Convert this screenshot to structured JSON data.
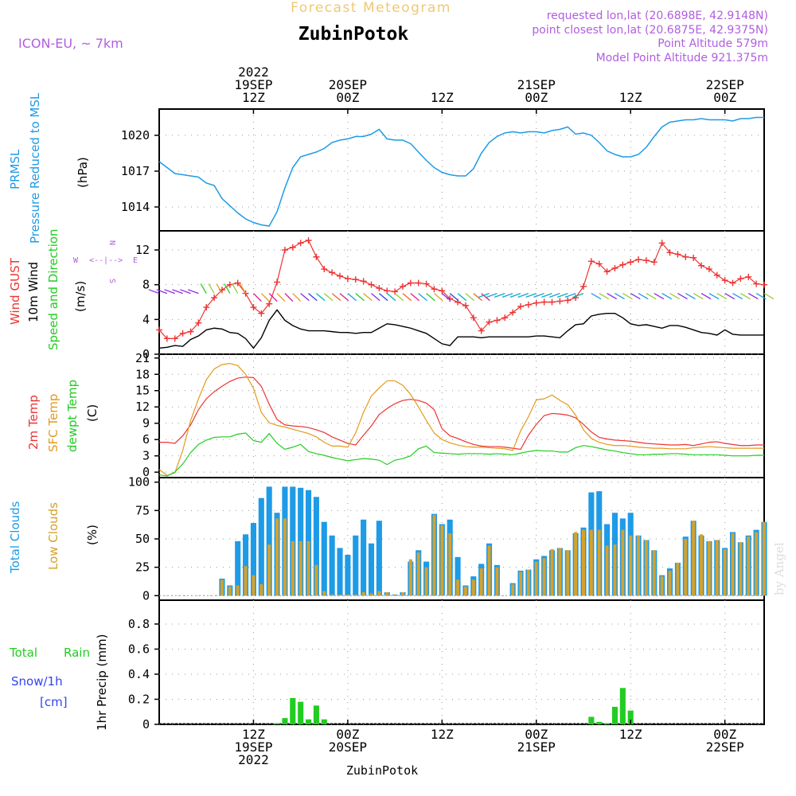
{
  "header": {
    "subtitle": "Forecast Meteogram",
    "station": "ZubinPotok",
    "model": "ICON-EU, ~ 7km",
    "requested": "requested lon,lat (20.6898E, 42.9148N)",
    "closest": "point closest lon,lat (20.6875E, 42.9375N)",
    "altitude": "Point Altitude 579m",
    "model_altitude": "Model Point Altitude 921.375m",
    "watermark": "by Angel",
    "footer_station": "ZubinPotok"
  },
  "time_axis": {
    "top": [
      {
        "t": 12,
        "lines": [
          "2022",
          "19SEP",
          "12Z"
        ]
      },
      {
        "t": 24,
        "lines": [
          "20SEP",
          "00Z"
        ]
      },
      {
        "t": 36,
        "lines": [
          "12Z"
        ]
      },
      {
        "t": 48,
        "lines": [
          "21SEP",
          "00Z"
        ]
      },
      {
        "t": 60,
        "lines": [
          "12Z"
        ]
      },
      {
        "t": 72,
        "lines": [
          "22SEP",
          "00Z"
        ]
      }
    ],
    "bottom": [
      {
        "t": 12,
        "lines": [
          "12Z",
          "19SEP",
          "2022"
        ]
      },
      {
        "t": 24,
        "lines": [
          "00Z",
          "20SEP"
        ]
      },
      {
        "t": 36,
        "lines": [
          "12Z"
        ]
      },
      {
        "t": 48,
        "lines": [
          "00Z",
          "21SEP"
        ]
      },
      {
        "t": 60,
        "lines": [
          "12Z"
        ]
      },
      {
        "t": 72,
        "lines": [
          "00Z",
          "22SEP"
        ]
      }
    ],
    "start": 0,
    "end": 77
  },
  "colors": {
    "pressure": "#1e9be6",
    "gust": "#ee3333",
    "wind": "#000000",
    "t2m": "#ee3333",
    "sfc": "#e39a1e",
    "dew": "#22cc22",
    "total_cloud": "#1e9be6",
    "low_cloud": "#d6a12c",
    "rain": "#22cc22",
    "snow": "#3344ee",
    "purple": "#b05ee0"
  },
  "panels": {
    "pressure": {
      "label1": "PRMSL",
      "label2": "Pressure Reduced to MSL",
      "unit": "(hPa)",
      "ticks": [
        1014,
        1017,
        1020
      ]
    },
    "wind": {
      "label1": "Wind GUST",
      "label2": "10m Wind",
      "label3": "Speed and Direction",
      "unit": "(m/s)",
      "ticks": [
        0,
        4,
        8,
        12
      ],
      "compass_w": "W",
      "compass_e": "E",
      "compass_n": "N",
      "compass_s": "S"
    },
    "temp": {
      "label1": "2m Temp",
      "label2": "SFC Temp",
      "label3": "dewpt Temp",
      "unit": "(C)",
      "ticks": [
        0,
        3,
        6,
        9,
        12,
        15,
        18,
        21
      ]
    },
    "cloud": {
      "label1": "Total Clouds",
      "label2": "Low Clouds",
      "unit": "(%)",
      "ticks": [
        0,
        25,
        50,
        75,
        100
      ]
    },
    "precip": {
      "label1": "Total",
      "label1b": "Rain",
      "label2": "Snow/1h",
      "label3": "[cm]",
      "unit": "1hr Precip (mm)",
      "ticks": [
        "0",
        "0.2",
        "0.4",
        "0.6",
        "0.8"
      ]
    }
  },
  "chart_data": [
    {
      "type": "line",
      "title": "PRMSL Pressure Reduced to MSL",
      "ylabel": "hPa",
      "ylim": [
        1012,
        1022.2
      ],
      "x": [
        0,
        2,
        3,
        5,
        6,
        7,
        8,
        9,
        10,
        11,
        12,
        13,
        14,
        15,
        16,
        17,
        18,
        19,
        20,
        21,
        22,
        23,
        24,
        25,
        26,
        27,
        28,
        29,
        30,
        31,
        32,
        33,
        34,
        35,
        36,
        37,
        38,
        39,
        40,
        41,
        42,
        43,
        44,
        45,
        46,
        47,
        48,
        49,
        50,
        51,
        52,
        53,
        54,
        55,
        56,
        57,
        58,
        59,
        60,
        61,
        62,
        63,
        64,
        65,
        66,
        67,
        68,
        69,
        70,
        71,
        72,
        73,
        74,
        75,
        76,
        77
      ],
      "series": [
        {
          "name": "PRMSL",
          "values": [
            1017.8,
            1016.8,
            1016.7,
            1016.5,
            1016.0,
            1015.8,
            1014.7,
            1014.1,
            1013.5,
            1013.0,
            1012.7,
            1012.5,
            1012.4,
            1013.6,
            1015.6,
            1017.3,
            1018.2,
            1018.4,
            1018.6,
            1018.9,
            1019.4,
            1019.6,
            1019.7,
            1019.9,
            1019.9,
            1020.1,
            1020.5,
            1019.7,
            1019.6,
            1019.6,
            1019.3,
            1018.6,
            1017.9,
            1017.3,
            1016.9,
            1016.7,
            1016.6,
            1016.6,
            1017.2,
            1018.5,
            1019.4,
            1019.9,
            1020.2,
            1020.3,
            1020.2,
            1020.3,
            1020.3,
            1020.2,
            1020.4,
            1020.5,
            1020.7,
            1020.1,
            1020.2,
            1020.0,
            1019.4,
            1018.7,
            1018.4,
            1018.2,
            1018.2,
            1018.4,
            1019.0,
            1019.9,
            1020.7,
            1021.1,
            1021.2,
            1021.3,
            1021.3,
            1021.4,
            1021.3,
            1021.3,
            1021.3,
            1021.2,
            1021.4,
            1021.4,
            1021.5,
            1021.5
          ]
        }
      ]
    },
    {
      "type": "line",
      "title": "Wind GUST / 10m Wind Speed and Direction",
      "ylabel": "m/s",
      "ylim": [
        0,
        14.2
      ],
      "x": [
        0,
        1,
        2,
        3,
        4,
        5,
        6,
        7,
        8,
        9,
        10,
        11,
        12,
        13,
        14,
        15,
        16,
        17,
        18,
        19,
        20,
        21,
        22,
        23,
        24,
        25,
        26,
        27,
        28,
        29,
        30,
        31,
        32,
        33,
        34,
        35,
        36,
        37,
        38,
        39,
        40,
        41,
        42,
        43,
        44,
        45,
        46,
        47,
        48,
        49,
        50,
        51,
        52,
        53,
        54,
        55,
        56,
        57,
        58,
        59,
        60,
        61,
        62,
        63,
        64,
        65,
        66,
        67,
        68,
        69,
        70,
        71,
        72,
        73,
        74,
        75,
        76,
        77
      ],
      "series": [
        {
          "name": "Wind GUST",
          "values": [
            2.8,
            1.8,
            1.8,
            2.4,
            2.6,
            3.6,
            5.4,
            6.5,
            7.4,
            8.0,
            8.2,
            7.0,
            5.4,
            4.7,
            5.8,
            8.3,
            12.0,
            12.3,
            12.8,
            13.1,
            11.2,
            9.8,
            9.4,
            9.0,
            8.7,
            8.6,
            8.4,
            8.0,
            7.6,
            7.3,
            7.2,
            7.8,
            8.2,
            8.2,
            8.1,
            7.5,
            7.3,
            6.4,
            6.0,
            5.6,
            4.2,
            2.7,
            3.7,
            3.9,
            4.2,
            4.8,
            5.5,
            5.7,
            5.9,
            6.0,
            6.0,
            6.1,
            6.2,
            6.5,
            7.8,
            10.7,
            10.4,
            9.5,
            9.9,
            10.3,
            10.6,
            10.9,
            10.8,
            10.6,
            12.8,
            11.7,
            11.5,
            11.2,
            11.1,
            10.2,
            9.8,
            9.1,
            8.5,
            8.2,
            8.7,
            8.9,
            8.1,
            8.0
          ]
        },
        {
          "name": "10m Wind",
          "values": [
            0.7,
            0.8,
            1.0,
            0.9,
            1.7,
            2.1,
            2.8,
            3.0,
            2.9,
            2.5,
            2.4,
            1.8,
            0.7,
            1.9,
            3.9,
            5.1,
            3.9,
            3.3,
            2.9,
            2.7,
            2.7,
            2.7,
            2.6,
            2.5,
            2.5,
            2.4,
            2.5,
            2.5,
            3.0,
            3.5,
            3.4,
            3.2,
            3.0,
            2.7,
            2.4,
            1.8,
            1.2,
            1.0,
            2.0,
            2.0,
            2.0,
            1.9,
            2.0,
            2.0,
            2.0,
            2.0,
            2.0,
            2.0,
            2.1,
            2.1,
            2.0,
            1.9,
            2.7,
            3.4,
            3.5,
            4.4,
            4.6,
            4.7,
            4.7,
            4.2,
            3.5,
            3.3,
            3.4,
            3.2,
            3.0,
            3.3,
            3.3,
            3.1,
            2.8,
            2.5,
            2.4,
            2.2,
            2.8,
            2.3,
            2.2,
            2.2,
            2.2,
            2.2
          ]
        }
      ]
    },
    {
      "type": "line",
      "title": "2m Temp / SFC Temp / dewpt Temp",
      "ylabel": "C",
      "ylim": [
        -1,
        21.7
      ],
      "x": [
        0,
        1,
        2,
        3,
        4,
        5,
        6,
        7,
        8,
        9,
        10,
        11,
        12,
        13,
        14,
        15,
        16,
        17,
        18,
        19,
        20,
        21,
        22,
        23,
        24,
        25,
        26,
        27,
        28,
        29,
        30,
        31,
        32,
        33,
        34,
        35,
        36,
        37,
        38,
        39,
        40,
        41,
        42,
        43,
        44,
        45,
        46,
        47,
        48,
        49,
        50,
        51,
        52,
        53,
        54,
        55,
        56,
        57,
        58,
        59,
        60,
        61,
        62,
        63,
        64,
        65,
        66,
        67,
        68,
        69,
        70,
        71,
        72,
        73,
        74,
        75,
        76,
        77
      ],
      "series": [
        {
          "name": "2m Temp",
          "values": [
            5.5,
            5.5,
            5.3,
            6.7,
            8.7,
            11.5,
            13.5,
            14.8,
            15.8,
            16.7,
            17.3,
            17.5,
            17.4,
            15.8,
            12.5,
            9.7,
            8.7,
            8.5,
            8.4,
            8.2,
            7.8,
            7.3,
            6.5,
            5.9,
            5.3,
            5.0,
            6.8,
            8.5,
            10.6,
            11.7,
            12.6,
            13.2,
            13.4,
            13.2,
            12.7,
            11.5,
            8.0,
            6.7,
            6.2,
            5.6,
            5.1,
            4.8,
            4.7,
            4.7,
            4.6,
            4.4,
            4.2,
            6.8,
            8.8,
            10.4,
            10.8,
            10.7,
            10.5,
            10.0,
            8.8,
            7.4,
            6.4,
            6.1,
            5.9,
            5.8,
            5.7,
            5.5,
            5.3,
            5.2,
            5.1,
            5.0,
            5.0,
            5.1,
            4.9,
            5.2,
            5.5,
            5.6,
            5.3,
            5.1,
            4.9,
            4.9,
            5.0,
            5.0
          ]
        },
        {
          "name": "SFC Temp",
          "values": [
            0.5,
            -0.6,
            -0.1,
            4.0,
            9.5,
            13.5,
            17.0,
            19.0,
            19.8,
            20.0,
            19.6,
            18.0,
            15.4,
            11.0,
            9.1,
            8.6,
            8.3,
            7.9,
            7.5,
            7.1,
            6.5,
            5.5,
            4.8,
            4.8,
            4.6,
            7.2,
            11.0,
            14.0,
            15.5,
            16.8,
            16.8,
            16.0,
            14.3,
            12.0,
            9.5,
            7.2,
            6.0,
            5.4,
            5.0,
            4.7,
            4.6,
            4.6,
            4.5,
            4.4,
            4.3,
            4.0,
            7.6,
            10.2,
            13.3,
            13.5,
            14.2,
            13.2,
            12.4,
            10.5,
            7.8,
            6.2,
            5.5,
            5.1,
            4.9,
            4.9,
            4.8,
            4.6,
            4.5,
            4.4,
            4.4,
            4.3,
            4.3,
            4.3,
            4.5,
            4.6,
            4.7,
            4.6,
            4.5,
            4.4,
            4.4,
            4.4,
            4.4,
            4.4
          ]
        },
        {
          "name": "dewpt Temp",
          "values": [
            -0.5,
            -0.7,
            0.0,
            1.5,
            3.6,
            5.1,
            5.9,
            6.4,
            6.5,
            6.5,
            7.0,
            7.2,
            5.8,
            5.5,
            7.1,
            5.3,
            4.2,
            4.6,
            5.1,
            3.8,
            3.4,
            3.1,
            2.7,
            2.4,
            2.1,
            2.3,
            2.5,
            2.4,
            2.2,
            1.4,
            2.2,
            2.5,
            3.0,
            4.3,
            4.8,
            3.6,
            3.5,
            3.4,
            3.3,
            3.4,
            3.4,
            3.4,
            3.3,
            3.4,
            3.3,
            3.2,
            3.5,
            3.8,
            4.0,
            3.9,
            3.9,
            3.7,
            3.7,
            4.5,
            4.9,
            4.7,
            4.4,
            4.1,
            3.9,
            3.6,
            3.4,
            3.2,
            3.2,
            3.3,
            3.3,
            3.4,
            3.4,
            3.3,
            3.2,
            3.2,
            3.2,
            3.2,
            3.1,
            3.0,
            3.0,
            3.0,
            3.1,
            3.1
          ]
        }
      ]
    },
    {
      "type": "bar",
      "title": "Total Clouds / Low Clouds",
      "ylabel": "%",
      "ylim": [
        -4,
        104
      ],
      "x": [
        0,
        1,
        2,
        3,
        4,
        5,
        6,
        7,
        8,
        9,
        10,
        11,
        12,
        13,
        14,
        15,
        16,
        17,
        18,
        19,
        20,
        21,
        22,
        23,
        24,
        25,
        26,
        27,
        28,
        29,
        30,
        31,
        32,
        33,
        34,
        35,
        36,
        37,
        38,
        39,
        40,
        41,
        42,
        43,
        44,
        45,
        46,
        47,
        48,
        49,
        50,
        51,
        52,
        53,
        54,
        55,
        56,
        57,
        58,
        59,
        60,
        61,
        62,
        63,
        64,
        65,
        66,
        67,
        68,
        69,
        70,
        71,
        72,
        73,
        74,
        75,
        76,
        77
      ],
      "series": [
        {
          "name": "Total Clouds",
          "values": [
            0,
            0,
            0,
            0,
            0,
            0,
            0,
            0,
            15,
            9,
            48,
            54,
            64,
            86,
            96,
            73,
            96,
            96,
            95,
            93,
            87,
            65,
            53,
            42,
            36,
            53,
            67,
            46,
            66,
            3,
            1,
            3,
            30,
            40,
            30,
            72,
            63,
            67,
            34,
            9,
            17,
            28,
            46,
            27,
            0,
            11,
            22,
            23,
            32,
            35,
            40,
            42,
            40,
            55,
            60,
            91,
            92,
            63,
            73,
            68,
            73,
            53,
            49,
            40,
            18,
            24,
            29,
            52,
            66,
            53,
            48,
            49,
            42,
            56,
            47,
            53,
            58,
            65
          ]
        },
        {
          "name": "Low Clouds",
          "values": [
            0,
            0,
            0,
            0,
            0,
            0,
            0,
            0,
            14,
            8,
            9,
            26,
            18,
            10,
            45,
            68,
            68,
            48,
            48,
            48,
            27,
            4,
            1,
            1,
            1,
            1,
            3,
            2,
            4,
            3,
            1,
            3,
            32,
            38,
            25,
            71,
            62,
            55,
            14,
            8,
            14,
            24,
            44,
            25,
            0,
            10,
            21,
            23,
            30,
            33,
            41,
            42,
            40,
            56,
            58,
            58,
            58,
            44,
            45,
            58,
            53,
            53,
            49,
            40,
            17,
            22,
            29,
            50,
            66,
            54,
            48,
            49,
            41,
            55,
            47,
            52,
            56,
            65
          ]
        }
      ]
    },
    {
      "type": "bar",
      "title": "1hr Precip",
      "ylabel": "1hr Precip (mm)",
      "ylim": [
        0,
        0.99
      ],
      "x": [
        15,
        16,
        17,
        18,
        19,
        20,
        21,
        55,
        56,
        57,
        58,
        59,
        60
      ],
      "series": [
        {
          "name": "Total Rain",
          "values": [
            0.01,
            0.05,
            0.21,
            0.18,
            0.04,
            0.15,
            0.04,
            0.06,
            0.02,
            0.01,
            0.14,
            0.29,
            0.11
          ]
        }
      ]
    }
  ]
}
